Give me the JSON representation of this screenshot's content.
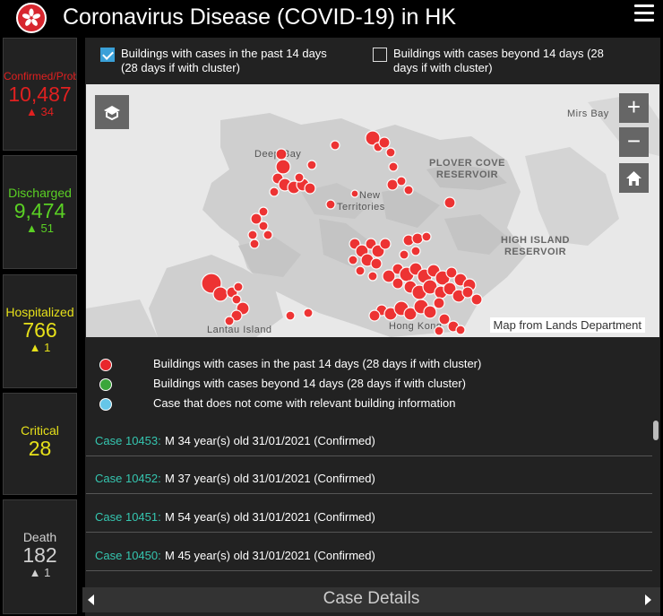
{
  "header": {
    "title": "Coronavirus Disease (COVID-19) in HK"
  },
  "stats": {
    "confirmed": {
      "label": "Confirmed/Prob",
      "value": "10,487",
      "delta": "▲ 34",
      "color": "#e02020"
    },
    "discharged": {
      "label": "Discharged",
      "value": "9,474",
      "delta": "▲ 51",
      "color": "#5ad024"
    },
    "hospitalized": {
      "label": "Hospitalized",
      "value": "766",
      "delta": "▲ 1",
      "color": "#e6e01a"
    },
    "critical": {
      "label": "Critical",
      "value": "28",
      "color": "#e6e01a"
    },
    "death": {
      "label": "Death",
      "value": "182",
      "delta": "▲ 1",
      "color": "#d0d0d0"
    }
  },
  "filters": {
    "recent": {
      "label_line1": "Buildings with cases in the past 14 days",
      "label_line2": "(28 days if with cluster)",
      "checked": true
    },
    "beyond": {
      "label_line1": "Buildings with cases beyond 14 days (28",
      "label_line2": "days if with cluster)",
      "checked": false
    }
  },
  "map": {
    "labels": {
      "deep_bay": "Deep Bay",
      "mirs_bay": "Mirs Bay",
      "new_territories_1": "New",
      "new_territories_2": "Territories",
      "plover_1": "PLOVER COVE",
      "plover_2": "RESERVOIR",
      "high_island_1": "HIGH ISLAND",
      "high_island_2": "RESERVOIR",
      "lantau": "Lantau Island",
      "hong_kong": "Hong Kong"
    },
    "credit": "Map from Lands Department",
    "controls": {
      "zoom_in": "+",
      "zoom_out": "−"
    }
  },
  "legend": [
    {
      "label": "Buildings with cases in the past 14 days (28 days if with cluster)",
      "color": "#e8272c"
    },
    {
      "label": "Buildings with cases beyond 14 days (28 days if with cluster)",
      "color": "#3aa63a"
    },
    {
      "label": "Case that does not come with relevant building information",
      "color": "#66c6e8"
    }
  ],
  "cases": [
    {
      "id": "Case 10453:",
      "info": "M  34 year(s) old  31/01/2021 (Confirmed)"
    },
    {
      "id": "Case 10452:",
      "info": "M  37 year(s) old  31/01/2021 (Confirmed)"
    },
    {
      "id": "Case 10451:",
      "info": "M  54 year(s) old  31/01/2021 (Confirmed)"
    },
    {
      "id": "Case 10450:",
      "info": "M  45 year(s) old  31/01/2021 (Confirmed)"
    }
  ],
  "footer": {
    "title": "Case Details"
  }
}
